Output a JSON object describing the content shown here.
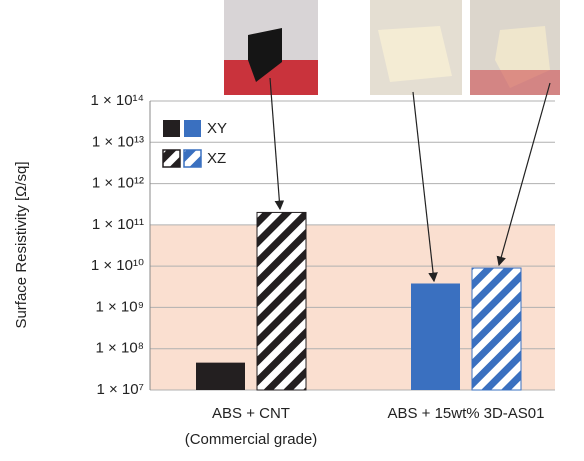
{
  "chart_data": {
    "type": "bar",
    "y_label": "Surface Resistivity [Ω/sq]",
    "categories": [
      "ABS + CNT",
      "ABS + 15wt%"
    ],
    "category_suffix": [
      null,
      "3D-AS01"
    ],
    "suffix_color": "#2e75b6",
    "category_sublabels": [
      "(Commercial grade)",
      null
    ],
    "series": [
      {
        "name": "XY",
        "colors": [
          "#231f20",
          "#3a70c0"
        ],
        "hatch": false,
        "values": [
          46000000,
          3800000000
        ]
      },
      {
        "name": "XZ",
        "colors": [
          "#231f20",
          "#3a70c0"
        ],
        "hatch": true,
        "values": [
          200000000000,
          9000000000
        ]
      }
    ],
    "log_scale": true,
    "ylim": [
      10000000,
      100000000000000
    ],
    "yticks": [
      {
        "value": 10000000,
        "label": "1 × 10⁷"
      },
      {
        "value": 100000000,
        "label": "1 × 10⁸"
      },
      {
        "value": 1000000000,
        "label": "1 × 10⁹"
      },
      {
        "value": 10000000000,
        "label": "1 × 10¹⁰"
      },
      {
        "value": 100000000000,
        "label": "1 × 10¹¹"
      },
      {
        "value": 1000000000000,
        "label": "1 × 10¹²"
      },
      {
        "value": 10000000000000,
        "label": "1 × 10¹³"
      },
      {
        "value": 100000000000000,
        "label": "1 × 10¹⁴"
      }
    ],
    "grid": true,
    "shade_range": [
      10000000,
      100000000000
    ],
    "shade_color": "#fadfd0",
    "legend": "upper-left"
  }
}
